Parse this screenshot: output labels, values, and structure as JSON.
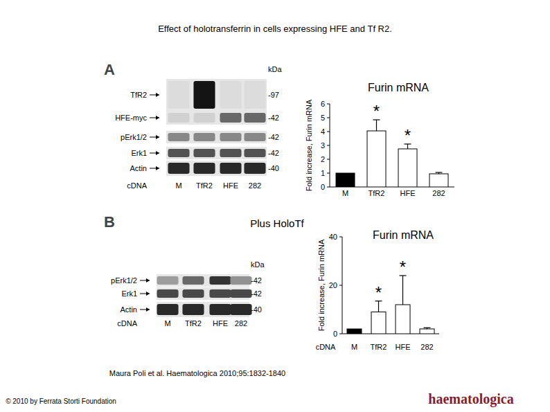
{
  "header": {
    "title": "Effect of holotransferrin in cells expressing HFE and Tf R2."
  },
  "footer": {
    "citation": "Maura Poli et al. Haematologica 2010;95:1832-1840",
    "copyright": "© 2010 by Ferrata Storti Foundation",
    "logo": "haematologica"
  },
  "panels": [
    {
      "letter": "A",
      "blot": {
        "unit_label": "kDa",
        "lane_label": "cDNA",
        "lanes": [
          "M",
          "TfR2",
          "HFE",
          "282"
        ],
        "rows": [
          {
            "name": "TfR2",
            "size_label": "-97",
            "intensities": [
              0.05,
              1,
              0.05,
              0.05
            ]
          },
          {
            "name": "HFE-myc",
            "size_label": "-42",
            "intensities": [
              0.1,
              0.1,
              0.6,
              0.6
            ]
          },
          {
            "name": "pErk1/2",
            "size_label": "-42",
            "intensities": [
              0.45,
              0.45,
              0.45,
              0.45
            ]
          },
          {
            "name": "Erk1",
            "size_label": "-42",
            "intensities": [
              0.7,
              0.7,
              0.7,
              0.7
            ]
          },
          {
            "name": "Actin",
            "size_label": "-40",
            "intensities": [
              0.9,
              0.9,
              0.9,
              0.9
            ]
          }
        ]
      }
    },
    {
      "letter": "B",
      "subtitle": "Plus HoloTf",
      "blot": {
        "unit_label": "kDa",
        "lane_label": "cDNA",
        "lanes": [
          "M",
          "TfR2",
          "HFE",
          "282"
        ],
        "rows": [
          {
            "name": "pErk1/2",
            "size_label": "-42",
            "intensities": [
              0.35,
              0.6,
              0.85,
              0.4
            ]
          },
          {
            "name": "Erk1",
            "size_label": "-42",
            "intensities": [
              0.75,
              0.75,
              0.75,
              0.75
            ]
          },
          {
            "name": "Actin",
            "size_label": "-40",
            "intensities": [
              0.9,
              0.9,
              0.9,
              0.9
            ]
          }
        ]
      }
    }
  ],
  "chart_data": [
    {
      "type": "bar",
      "title": "Furin mRNA",
      "y_label": "Fold increase, Furin mRNA",
      "categories": [
        "M",
        "TfR2",
        "HFE",
        "282"
      ],
      "values": [
        1,
        4.05,
        2.75,
        0.95
      ],
      "errors": [
        null,
        0.8,
        0.35,
        0.1
      ],
      "colors": [
        "#000000",
        "#ffffff",
        "#ffffff",
        "#ffffff"
      ],
      "significance": [
        null,
        "*",
        "*",
        null
      ],
      "ylim": [
        0,
        6
      ],
      "yticks": [
        0,
        1,
        2,
        3,
        4,
        5,
        6
      ]
    },
    {
      "type": "bar",
      "title": "Furin mRNA",
      "y_label": "Fold increase, Furin mRNA",
      "x_label": "cDNA",
      "categories": [
        "M",
        "TfR2",
        "HFE",
        "282"
      ],
      "values": [
        2,
        9,
        12,
        2
      ],
      "errors": [
        null,
        4.5,
        12,
        0.5
      ],
      "colors": [
        "#000000",
        "#ffffff",
        "#ffffff",
        "#ffffff"
      ],
      "significance": [
        null,
        "*",
        "*",
        null
      ],
      "ylim": [
        0,
        40
      ],
      "yticks": [
        0,
        20,
        40
      ]
    }
  ]
}
